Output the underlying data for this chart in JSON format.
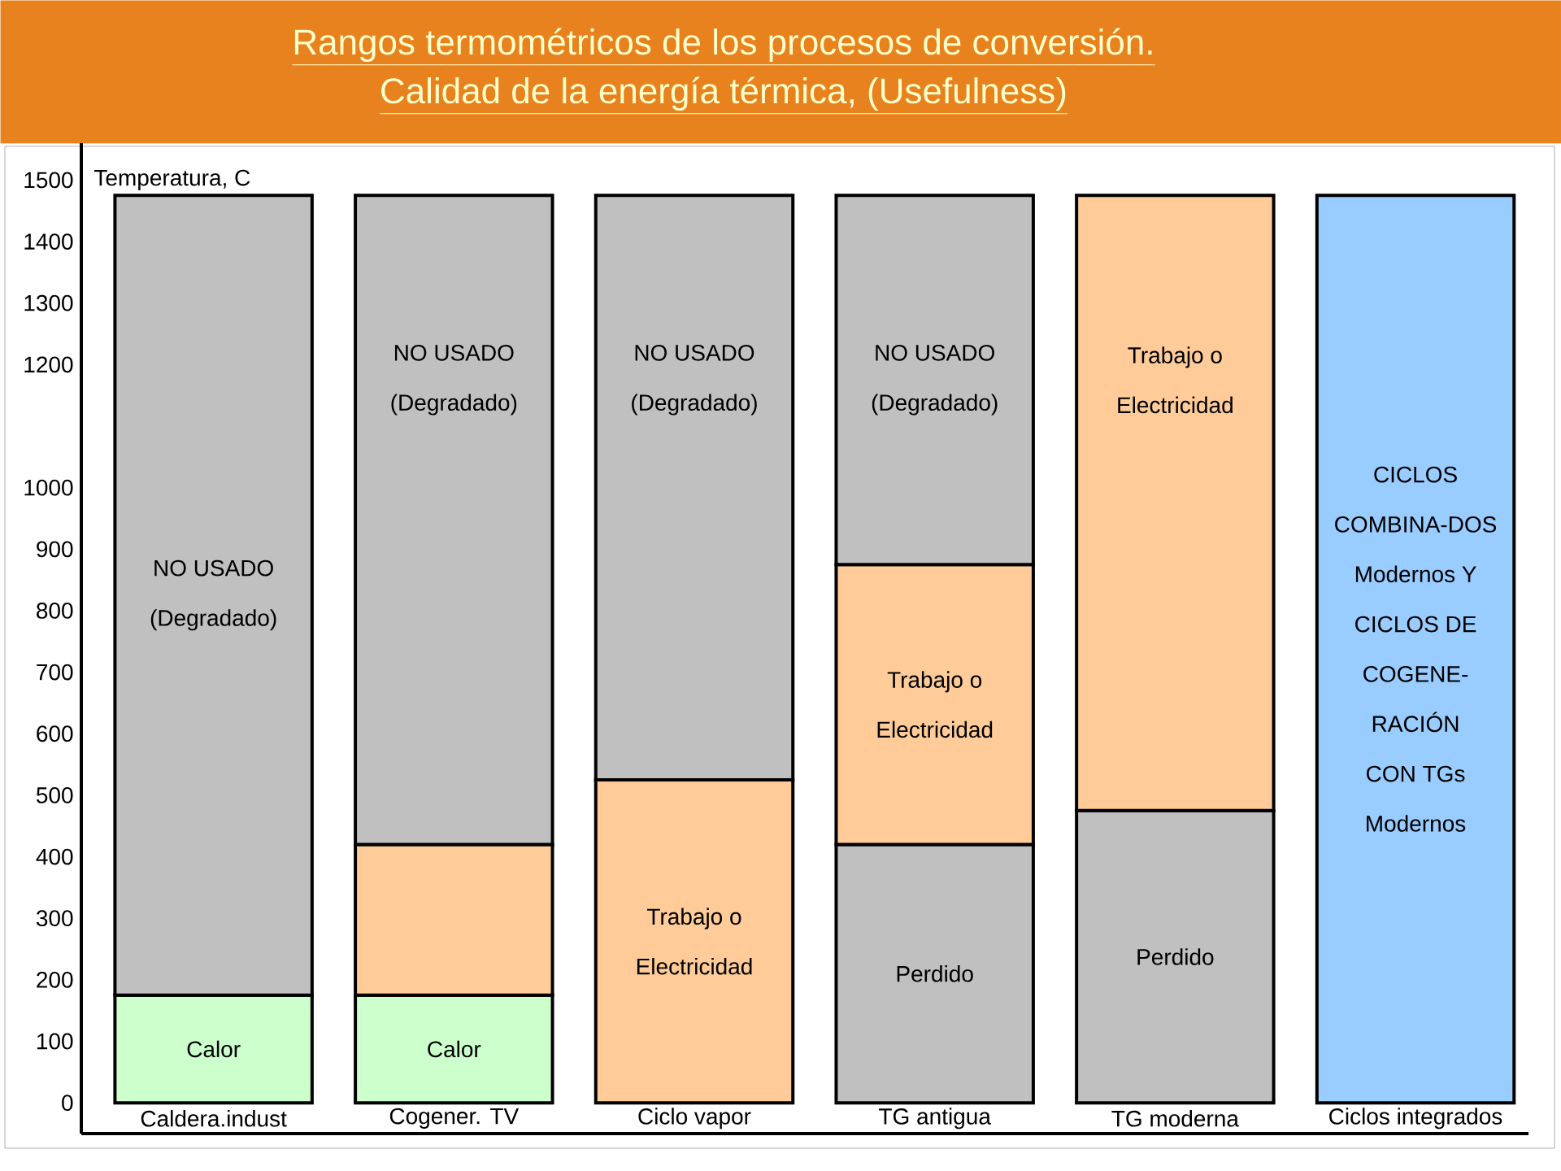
{
  "chart_data": {
    "type": "bar",
    "stacked": true,
    "title": "Rangos termométricos de los procesos de conversión.",
    "subtitle": "Calidad de la energía térmica, (Usefulness)",
    "ylabel": "Temperatura, C",
    "categories": [
      "Caldera.indust",
      "Cogener. TV",
      "Ciclo vapor",
      "TG antigua",
      "TG moderna",
      "Ciclos integrados"
    ],
    "series": [
      {
        "name": "Calor",
        "color": "#ccffcc",
        "values": [
          175,
          175,
          null,
          null,
          null,
          null
        ]
      },
      {
        "name": "Perdido",
        "color": "#c0c0c0",
        "values": [
          null,
          null,
          null,
          420,
          475,
          null
        ]
      },
      {
        "name": "Trabajo o Electricidad",
        "color": "#ffcc99",
        "values": [
          null,
          null,
          525,
          455,
          1000,
          null
        ]
      },
      {
        "color": "#ffcc99",
        "values": [
          null,
          245,
          null,
          null,
          null,
          null
        ]
      },
      {
        "name": "NO USADO (Degradado)",
        "color": "#c0c0c0",
        "values": [
          1300,
          1055,
          950,
          600,
          null,
          null
        ]
      },
      {
        "name": "CICLOS COMBINA-DOS Modernos Y CICLOS DE COGENE-RACIÓN CON TGs Modernos",
        "color": "#99ccff",
        "values": [
          null,
          null,
          null,
          null,
          null,
          1475
        ]
      }
    ],
    "ylim": [
      -50,
      1560
    ],
    "yticks": [
      0,
      100,
      200,
      300,
      400,
      500,
      600,
      700,
      800,
      900,
      1000,
      1200,
      1300,
      1400,
      1500
    ]
  }
}
